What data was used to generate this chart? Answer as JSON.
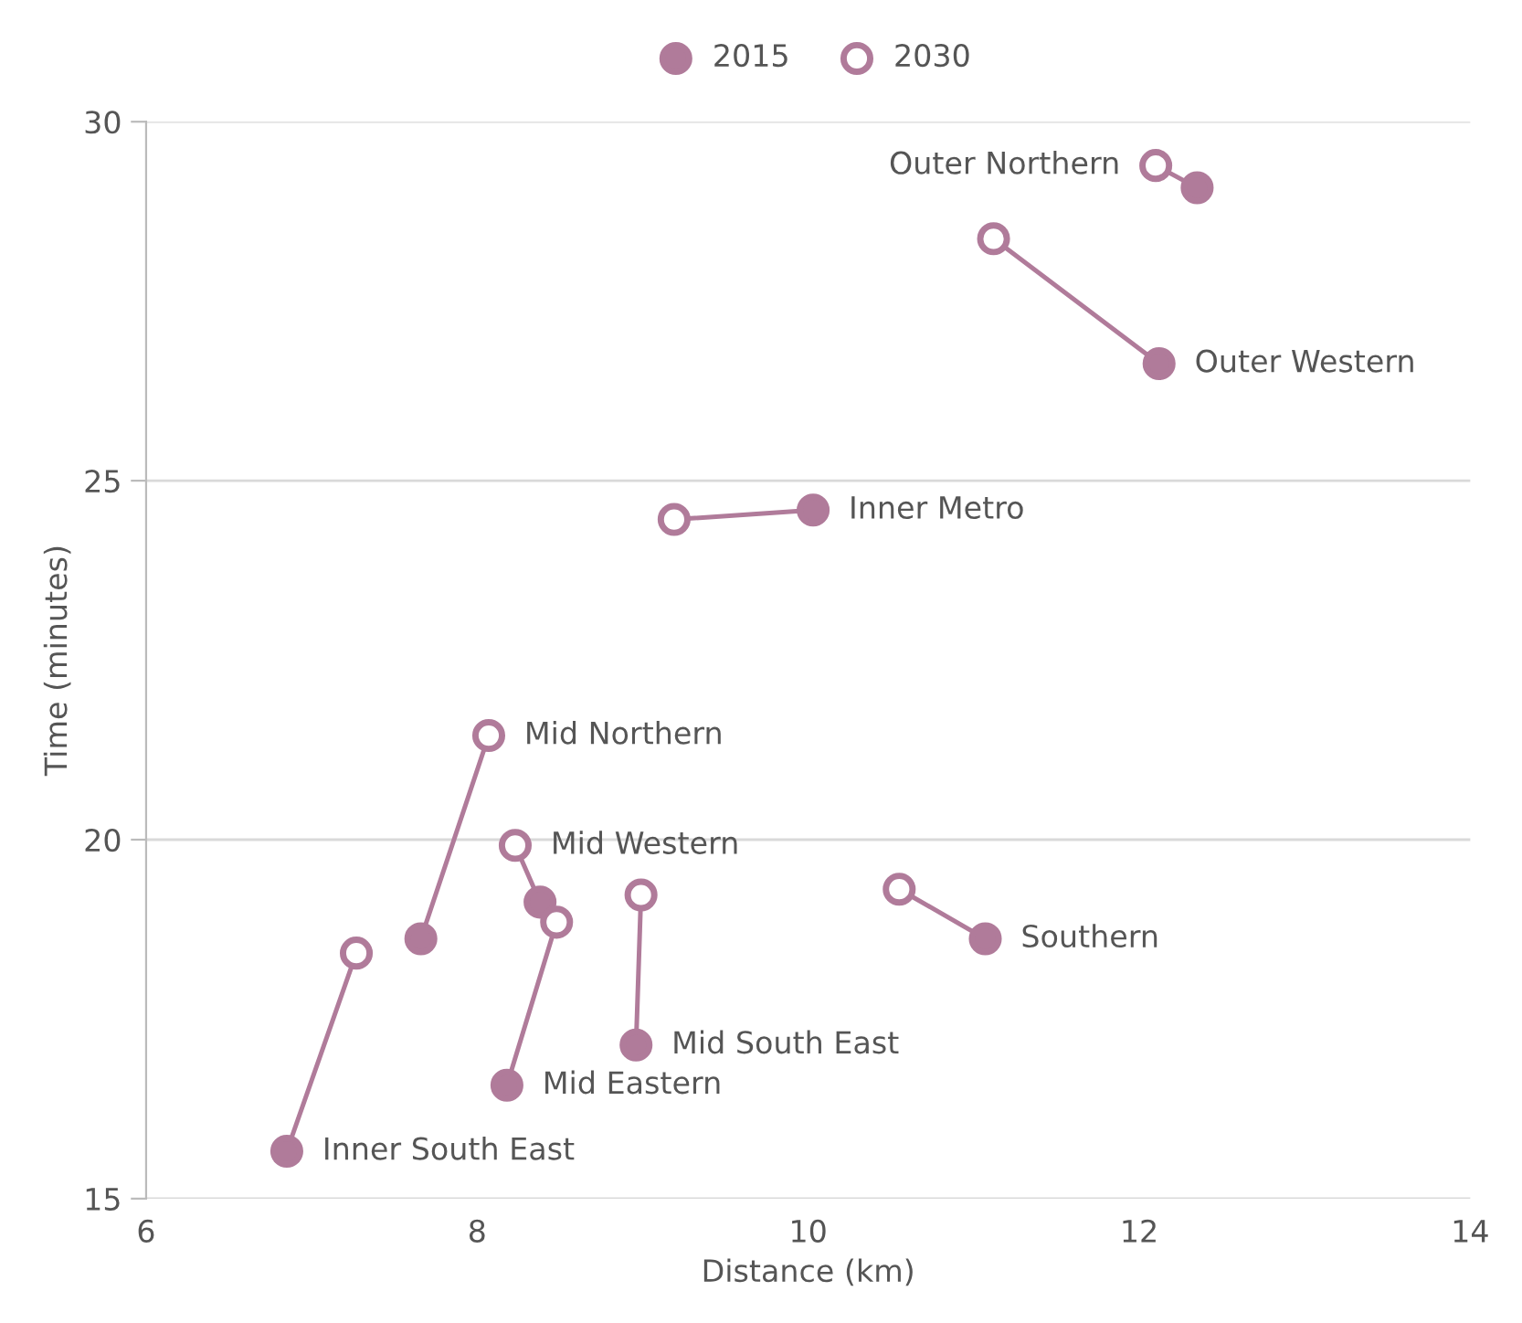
{
  "chart_data": {
    "type": "scatter",
    "xlabel": "Distance (km)",
    "ylabel": "Time (minutes)",
    "xlim": [
      6,
      14
    ],
    "xticks": [
      6,
      8,
      10,
      12,
      14
    ],
    "ylim": [
      15,
      30
    ],
    "yticks": [
      15,
      20,
      25,
      30
    ],
    "grid": "y",
    "legend": "top",
    "series": [
      {
        "type": "line",
        "color": "#b07b9a",
        "x": [
          12.35,
          12.1
        ],
        "values": [
          29.08,
          29.39
        ]
      },
      {
        "type": "line",
        "color": "#b07b9a",
        "x": [
          12.12,
          11.12
        ],
        "values": [
          26.63,
          28.37
        ]
      },
      {
        "type": "line",
        "color": "#b07b9a",
        "x": [
          10.03,
          9.19
        ],
        "values": [
          24.59,
          24.46
        ]
      },
      {
        "type": "line",
        "color": "#b07b9a",
        "x": [
          7.66,
          8.07
        ],
        "values": [
          18.62,
          21.45
        ]
      },
      {
        "type": "line",
        "color": "#b07b9a",
        "x": [
          8.38,
          8.23
        ],
        "values": [
          19.13,
          19.92
        ]
      },
      {
        "type": "line",
        "color": "#b07b9a",
        "x": [
          8.18,
          8.48
        ],
        "values": [
          16.58,
          18.85
        ]
      },
      {
        "type": "line",
        "color": "#b07b9a",
        "x": [
          8.96,
          8.99
        ],
        "values": [
          17.14,
          19.23
        ]
      },
      {
        "type": "line",
        "color": "#b07b9a",
        "x": [
          11.07,
          10.55
        ],
        "values": [
          18.62,
          19.31
        ]
      },
      {
        "type": "line",
        "color": "#b07b9a",
        "x": [
          6.85,
          7.27
        ],
        "values": [
          15.66,
          18.42
        ]
      },
      {
        "name": "2015",
        "marker": "circle",
        "color": "#b07b9a",
        "x": [
          12.35,
          12.12,
          10.03,
          7.66,
          8.38,
          8.18,
          8.96,
          11.07,
          6.85
        ],
        "values": [
          29.08,
          26.63,
          24.59,
          18.62,
          19.13,
          16.58,
          17.14,
          18.62,
          15.66
        ]
      },
      {
        "name": "2030",
        "marker": "circle",
        "color": "#b07b9a",
        "x": [
          12.1,
          11.12,
          9.19,
          8.07,
          8.23,
          8.48,
          8.99,
          10.55,
          7.27
        ],
        "values": [
          29.39,
          28.37,
          24.46,
          21.45,
          19.92,
          18.85,
          19.23,
          19.31,
          18.42
        ]
      }
    ],
    "annotations": [
      {
        "text": "Outer Northern",
        "x": 12.1,
        "y": 29.39
      },
      {
        "text": "Outer Western",
        "x": 12.12,
        "y": 26.63
      },
      {
        "text": "Inner Metro",
        "x": 10.03,
        "y": 24.59
      },
      {
        "text": "Mid Northern",
        "x": 8.07,
        "y": 21.45
      },
      {
        "text": "Mid Western",
        "x": 8.23,
        "y": 19.92
      },
      {
        "text": "Mid Eastern",
        "x": 8.18,
        "y": 16.58
      },
      {
        "text": "Mid South East",
        "x": 8.96,
        "y": 17.14
      },
      {
        "text": "Southern",
        "x": 11.07,
        "y": 18.62
      },
      {
        "text": "Inner South East",
        "x": 6.85,
        "y": 15.66
      }
    ]
  }
}
